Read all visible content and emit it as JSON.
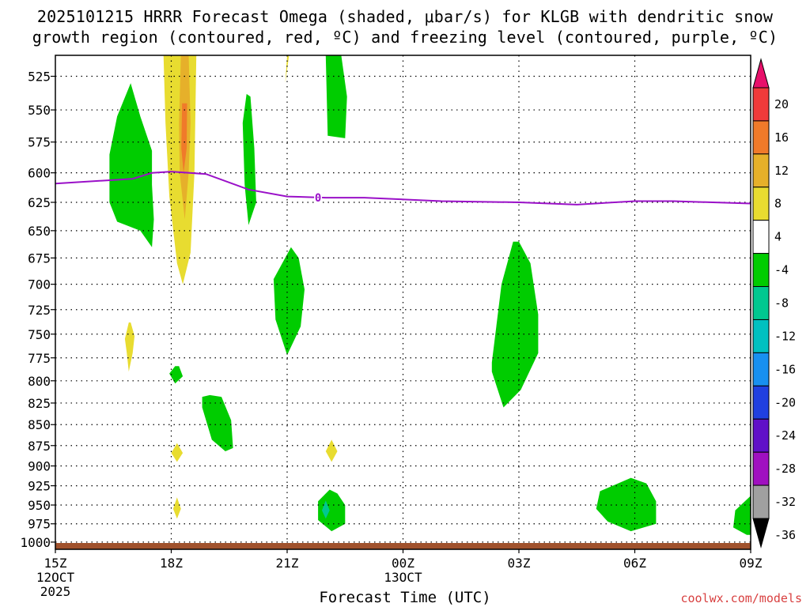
{
  "title": {
    "line1": "2025101215 HRRR Forecast Omega (shaded, μbar/s) for KLGB with dendritic snow",
    "line2": "growth region (contoured, red, ºC) and freezing level (contoured, purple, ºC)"
  },
  "xlabel": "Forecast Time (UTC)",
  "credit": "coolwx.com/models",
  "chart_data": {
    "type": "heatmap",
    "x_ticks": [
      {
        "hour": 0,
        "label": "15Z",
        "sub1": "12OCT",
        "sub2": "2025"
      },
      {
        "hour": 3,
        "label": "18Z",
        "sub1": "",
        "sub2": ""
      },
      {
        "hour": 6,
        "label": "21Z",
        "sub1": "",
        "sub2": ""
      },
      {
        "hour": 9,
        "label": "00Z",
        "sub1": "13OCT",
        "sub2": ""
      },
      {
        "hour": 12,
        "label": "03Z",
        "sub1": "",
        "sub2": ""
      },
      {
        "hour": 15,
        "label": "06Z",
        "sub1": "",
        "sub2": ""
      },
      {
        "hour": 18,
        "label": "09Z",
        "sub1": "",
        "sub2": ""
      }
    ],
    "xlim_hours": [
      0,
      18
    ],
    "y_ticks": [
      525,
      550,
      575,
      600,
      625,
      650,
      675,
      700,
      725,
      750,
      775,
      800,
      825,
      850,
      875,
      900,
      925,
      950,
      975,
      1000
    ],
    "ylim_hpa": [
      510,
      1010
    ],
    "y_scale": "log-pressure",
    "grid": true,
    "colorbar": {
      "labels": [
        "20",
        "16",
        "12",
        "8",
        "4",
        "-4",
        "-8",
        "-12",
        "-16",
        "-20",
        "-24",
        "-28",
        "-32",
        "-36"
      ],
      "colors": [
        "#e8106a",
        "#f03a3a",
        "#f07a2a",
        "#e6b02a",
        "#e8dc30",
        "#ffffff",
        "#00cc00",
        "#00c890",
        "#00c0c0",
        "#1890f0",
        "#2040e0",
        "#6010c8",
        "#a010c0",
        "#a0a0a0",
        "#000000"
      ]
    },
    "freezing_level": {
      "label": "0",
      "color": "#9a10c8",
      "points": [
        [
          0,
          609
        ],
        [
          2,
          605
        ],
        [
          2.5,
          600
        ],
        [
          3.0,
          599
        ],
        [
          3.9,
          601
        ],
        [
          5,
          614
        ],
        [
          6.0,
          620
        ],
        [
          7.0,
          621
        ],
        [
          8.0,
          621
        ],
        [
          10,
          624
        ],
        [
          12,
          625
        ],
        [
          13.5,
          627
        ],
        [
          15,
          624
        ],
        [
          16,
          624
        ],
        [
          18,
          626
        ]
      ]
    },
    "omega_areas": [
      {
        "category": "4 to 8",
        "color": "#e8dc30",
        "points": [
          [
            2.8,
            510
          ],
          [
            2.85,
            560
          ],
          [
            2.95,
            620
          ],
          [
            3.15,
            680
          ],
          [
            3.3,
            700
          ],
          [
            3.5,
            670
          ],
          [
            3.6,
            600
          ],
          [
            3.65,
            510
          ]
        ]
      },
      {
        "category": "8 to 12",
        "color": "#e6b02a",
        "points": [
          [
            3.25,
            510
          ],
          [
            3.2,
            560
          ],
          [
            3.22,
            600
          ],
          [
            3.35,
            640
          ],
          [
            3.45,
            600
          ],
          [
            3.5,
            560
          ],
          [
            3.45,
            510
          ]
        ]
      },
      {
        "category": "12 to 16",
        "color": "#f07a2a",
        "points": [
          [
            3.28,
            545
          ],
          [
            3.26,
            580
          ],
          [
            3.32,
            600
          ],
          [
            3.4,
            580
          ],
          [
            3.41,
            545
          ]
        ]
      },
      {
        "category": "4 to 8",
        "color": "#e8dc30",
        "points": [
          [
            6.0,
            510
          ],
          [
            5.95,
            530
          ],
          [
            6.05,
            510
          ]
        ]
      },
      {
        "category": "4 to 8",
        "color": "#e8dc30",
        "points": [
          [
            1.9,
            738
          ],
          [
            1.8,
            755
          ],
          [
            1.85,
            770
          ],
          [
            1.9,
            790
          ],
          [
            2.0,
            770
          ],
          [
            2.05,
            752
          ],
          [
            1.95,
            738
          ]
        ]
      },
      {
        "category": "4 to 8",
        "color": "#e8dc30",
        "points": [
          [
            3.15,
            872
          ],
          [
            3.0,
            884
          ],
          [
            3.15,
            895
          ],
          [
            3.3,
            884
          ]
        ]
      },
      {
        "category": "4 to 8",
        "color": "#e8dc30",
        "points": [
          [
            3.15,
            940
          ],
          [
            3.05,
            955
          ],
          [
            3.15,
            968
          ],
          [
            3.25,
            955
          ]
        ]
      },
      {
        "category": "4 to 8",
        "color": "#e8dc30",
        "points": [
          [
            7.15,
            868
          ],
          [
            7.0,
            882
          ],
          [
            7.15,
            895
          ],
          [
            7.3,
            882
          ]
        ]
      },
      {
        "category": "-4 to -8",
        "color": "#00cc00",
        "points": [
          [
            1.95,
            530
          ],
          [
            1.6,
            555
          ],
          [
            1.4,
            585
          ],
          [
            1.4,
            625
          ],
          [
            1.6,
            642
          ],
          [
            2.2,
            650
          ],
          [
            2.5,
            665
          ],
          [
            2.55,
            640
          ],
          [
            2.5,
            610
          ],
          [
            2.5,
            582
          ],
          [
            2.2,
            555
          ]
        ]
      },
      {
        "category": "-4 to -8",
        "color": "#00cc00",
        "points": [
          [
            4.95,
            538
          ],
          [
            4.85,
            560
          ],
          [
            4.9,
            610
          ],
          [
            5.0,
            645
          ],
          [
            5.2,
            625
          ],
          [
            5.15,
            580
          ],
          [
            5.05,
            540
          ]
        ]
      },
      {
        "category": "-4 to -8",
        "color": "#00cc00",
        "points": [
          [
            7.0,
            510
          ],
          [
            7.05,
            570
          ],
          [
            7.5,
            572
          ],
          [
            7.55,
            540
          ],
          [
            7.4,
            510
          ]
        ]
      },
      {
        "category": "-4 to -8",
        "color": "#00cc00",
        "points": [
          [
            6.1,
            665
          ],
          [
            5.65,
            695
          ],
          [
            5.7,
            735
          ],
          [
            6.0,
            772
          ],
          [
            6.35,
            742
          ],
          [
            6.45,
            705
          ],
          [
            6.3,
            675
          ]
        ]
      },
      {
        "category": "-4 to -8",
        "color": "#00cc00",
        "points": [
          [
            11.85,
            660
          ],
          [
            11.55,
            700
          ],
          [
            11.3,
            780
          ],
          [
            11.3,
            790
          ],
          [
            11.6,
            830
          ],
          [
            12.05,
            810
          ],
          [
            12.5,
            770
          ],
          [
            12.5,
            730
          ],
          [
            12.3,
            680
          ],
          [
            12.0,
            660
          ]
        ]
      },
      {
        "category": "-4 to -8",
        "color": "#00cc00",
        "points": [
          [
            3.1,
            784
          ],
          [
            2.95,
            792
          ],
          [
            3.1,
            803
          ],
          [
            3.3,
            795
          ],
          [
            3.2,
            784
          ]
        ]
      },
      {
        "category": "-4 to -8",
        "color": "#00cc00",
        "points": [
          [
            3.8,
            818
          ],
          [
            3.8,
            830
          ],
          [
            4.05,
            868
          ],
          [
            4.4,
            882
          ],
          [
            4.6,
            878
          ],
          [
            4.55,
            845
          ],
          [
            4.3,
            818
          ],
          [
            4.0,
            816
          ]
        ]
      },
      {
        "category": "-4 to -8",
        "color": "#00cc00",
        "points": [
          [
            7.1,
            930
          ],
          [
            6.8,
            945
          ],
          [
            6.8,
            970
          ],
          [
            7.15,
            985
          ],
          [
            7.5,
            975
          ],
          [
            7.5,
            950
          ],
          [
            7.3,
            935
          ]
        ]
      },
      {
        "category": "-4 to -8",
        "color": "#00cc00",
        "points": [
          [
            14.9,
            915
          ],
          [
            14.1,
            932
          ],
          [
            14.0,
            955
          ],
          [
            14.3,
            972
          ],
          [
            14.9,
            985
          ],
          [
            15.55,
            975
          ],
          [
            15.55,
            945
          ],
          [
            15.3,
            922
          ]
        ]
      },
      {
        "category": "-4 to -8",
        "color": "#00cc00",
        "points": [
          [
            18.0,
            938
          ],
          [
            17.6,
            957
          ],
          [
            17.55,
            980
          ],
          [
            17.9,
            990
          ],
          [
            18.0,
            990
          ]
        ]
      },
      {
        "category": "-8 to -12",
        "color": "#00c890",
        "points": [
          [
            7.0,
            944
          ],
          [
            6.9,
            957
          ],
          [
            7.0,
            968
          ],
          [
            7.1,
            957
          ]
        ]
      }
    ]
  }
}
